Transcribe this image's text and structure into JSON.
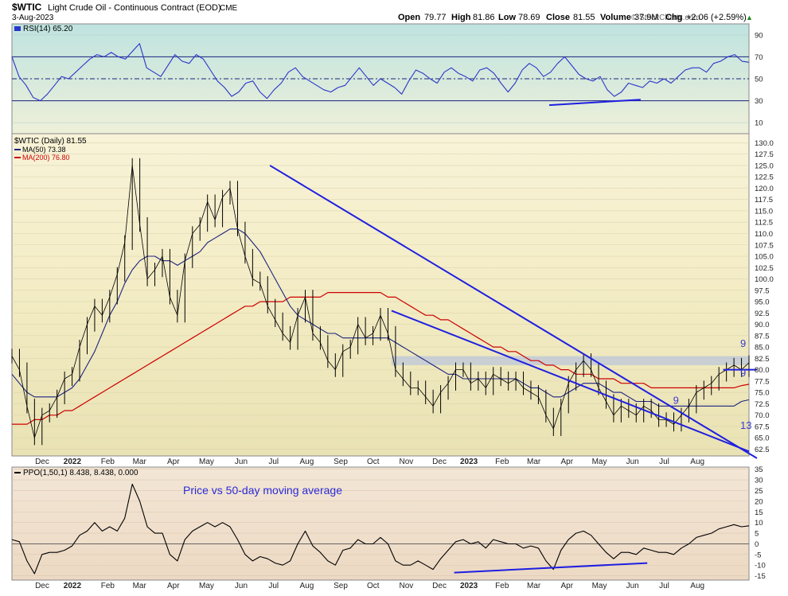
{
  "header": {
    "symbol": "$WTIC",
    "name": "Light Crude Oil - Continuous Contract (EOD)",
    "exchange": "CME",
    "date": "3-Aug-2023",
    "open_label": "Open",
    "open": "79.77",
    "high_label": "High",
    "high": "81.86",
    "low_label": "Low",
    "low": "78.69",
    "close_label": "Close",
    "close": "81.55",
    "volume_label": "Volume",
    "volume": "37.9M",
    "chg_label": "Chg",
    "chg": "+2.06 (+2.59%)",
    "up_arrow": "▲",
    "credit": "© StockCharts.com"
  },
  "colors": {
    "price": "#000000",
    "ma50": "#1a237e",
    "ma200": "#cc0000",
    "trendline": "#1f1fe0",
    "annotation": "#3a3ad0",
    "rsi_line": "#2a36c8",
    "ppo_line": "#000000",
    "resistance_band": "#a9b9e6"
  },
  "chart_data": [
    {
      "type": "line",
      "panel": "indicator",
      "title": "RSI(14) 65.20",
      "series": [
        {
          "name": "RSI(14)",
          "values": [
            70,
            52,
            44,
            33,
            30,
            36,
            44,
            52,
            50,
            56,
            62,
            68,
            72,
            70,
            74,
            70,
            68,
            75,
            82,
            60,
            56,
            52,
            62,
            72,
            66,
            64,
            72,
            68,
            58,
            48,
            42,
            34,
            38,
            46,
            48,
            38,
            32,
            40,
            46,
            56,
            60,
            52,
            48,
            44,
            40,
            38,
            42,
            44,
            52,
            60,
            52,
            44,
            50,
            46,
            42,
            36,
            48,
            58,
            55,
            50,
            46,
            56,
            60,
            55,
            52,
            48,
            58,
            60,
            55,
            46,
            38,
            46,
            58,
            64,
            60,
            52,
            56,
            64,
            70,
            62,
            54,
            50,
            48,
            52,
            40,
            34,
            38,
            46,
            44,
            42,
            48,
            46,
            50,
            46,
            52,
            58,
            60,
            60,
            56,
            64,
            66,
            70,
            72,
            66,
            65
          ]
        }
      ],
      "yticks": [
        "90",
        "70",
        "50",
        "30",
        "10"
      ],
      "ylim": [
        0,
        100
      ],
      "overbought": 70,
      "oversold": 30,
      "midline": 50
    },
    {
      "type": "line",
      "panel": "price",
      "title": "$WTIC (Daily) 81.55",
      "series": [
        {
          "name": "$WTIC (Daily)",
          "values": [
            83,
            80,
            72,
            65,
            70,
            71,
            74,
            78,
            79,
            85,
            90,
            94,
            92,
            96,
            101,
            108,
            125,
            112,
            100,
            102,
            105,
            96,
            92,
            104,
            110,
            112,
            117,
            113,
            118,
            120,
            111,
            105,
            100,
            99,
            94,
            91,
            88,
            86,
            92,
            96,
            88,
            86,
            82,
            80,
            84,
            85,
            90,
            87,
            88,
            92,
            88,
            80,
            78,
            76,
            76,
            74,
            72,
            75,
            77,
            80,
            80,
            77,
            78,
            76,
            79,
            78,
            77,
            78,
            76,
            75,
            74,
            70,
            67,
            72,
            77,
            80,
            82,
            80,
            76,
            73,
            70,
            72,
            71,
            70,
            72,
            71,
            69,
            69,
            68,
            70,
            72,
            75,
            76,
            77,
            79,
            80,
            81,
            80,
            81.55
          ]
        },
        {
          "name": "MA(50)",
          "values": [
            79,
            77,
            75,
            74,
            74,
            74,
            74,
            75,
            76,
            78,
            81,
            84,
            88,
            92,
            95,
            99,
            102,
            104,
            105,
            105,
            104,
            104,
            103,
            104,
            105,
            106,
            108,
            109,
            110,
            111,
            111,
            110,
            108,
            106,
            103,
            100,
            97,
            94,
            92,
            91,
            90,
            89,
            88,
            88,
            87,
            87,
            87,
            87,
            87,
            87,
            87,
            86,
            85,
            84,
            83,
            82,
            81,
            80,
            79,
            79,
            78,
            78,
            78,
            78,
            78,
            78,
            78,
            78,
            77,
            76,
            76,
            75,
            74,
            74,
            75,
            76,
            77,
            77,
            77,
            76,
            75,
            75,
            74,
            73,
            73,
            73,
            72,
            72,
            72,
            72,
            72,
            72,
            72,
            72,
            72,
            72,
            72,
            73,
            73.38
          ]
        },
        {
          "name": "MA(200)",
          "values": [
            68,
            68,
            68,
            69,
            69,
            70,
            70,
            71,
            71,
            72,
            73,
            74,
            75,
            76,
            77,
            78,
            79,
            80,
            81,
            82,
            83,
            84,
            85,
            86,
            87,
            88,
            89,
            90,
            91,
            92,
            93,
            94,
            94,
            95,
            95,
            95,
            95,
            96,
            96,
            96,
            96,
            96,
            97,
            97,
            97,
            97,
            97,
            97,
            97,
            97,
            96,
            96,
            95,
            94,
            93,
            92,
            92,
            91,
            91,
            90,
            89,
            88,
            87,
            86,
            85,
            85,
            84,
            84,
            83,
            82,
            82,
            81,
            81,
            80,
            80,
            79,
            79,
            79,
            78,
            78,
            78,
            77,
            77,
            77,
            77,
            76,
            76,
            76,
            76,
            76,
            76,
            76,
            76,
            76,
            76,
            76,
            76,
            76.5,
            76.8
          ]
        }
      ],
      "legend": [
        "$WTIC (Daily) 81.55",
        "MA(50) 73.38",
        "MA(200) 76.80"
      ],
      "yticks": [
        "130.0",
        "127.5",
        "125.0",
        "122.5",
        "120.0",
        "117.5",
        "115.0",
        "112.5",
        "110.0",
        "107.5",
        "105.0",
        "102.5",
        "100.0",
        "97.5",
        "95.0",
        "92.5",
        "90.0",
        "87.5",
        "85.0",
        "82.5",
        "80.0",
        "77.5",
        "75.0",
        "72.5",
        "70.0",
        "67.5",
        "65.0",
        "62.5"
      ],
      "ylim": [
        61,
        132
      ],
      "trendlines": [
        {
          "name": "upper-trendline",
          "from": [
            0.35,
            125.0
          ],
          "to": [
            1.02,
            60.5
          ]
        },
        {
          "name": "lower-trendline",
          "from": [
            0.515,
            93.0
          ],
          "to": [
            1.0,
            62.0
          ]
        },
        {
          "name": "ma-divergence-line",
          "from": [
            0.965,
            80.0
          ],
          "to": [
            1.03,
            80.0
          ]
        }
      ],
      "resistance_band": [
        81.0,
        83.0
      ],
      "resistance_band_from": 0.515,
      "annotations": [
        {
          "text": "9",
          "x": 0.897,
          "y": 72.5
        },
        {
          "text": "9",
          "x": 1.017,
          "y": 78.5
        },
        {
          "text": "9",
          "x": 1.052,
          "y": 85.0
        },
        {
          "text": "13",
          "x": 0.99,
          "y": 67.0
        }
      ]
    },
    {
      "type": "line",
      "panel": "indicator",
      "title": "PPO(1,50,1) 8.438, 8.438, 0.000",
      "annotation": "Price vs 50-day moving average",
      "series": [
        {
          "name": "PPO(1,50,1)",
          "values": [
            2,
            1,
            -8,
            -14,
            -5,
            -4,
            -4,
            -3,
            -1,
            4,
            6,
            10,
            6,
            8,
            6,
            12,
            28,
            20,
            8,
            5,
            5,
            -5,
            -8,
            2,
            6,
            8,
            10,
            8,
            10,
            8,
            2,
            -5,
            -8,
            -6,
            -7,
            -9,
            -10,
            -8,
            0,
            6,
            -1,
            -4,
            -8,
            -10,
            -3,
            -2,
            2,
            0,
            0,
            3,
            0,
            -8,
            -10,
            -10,
            -8,
            -10,
            -12,
            -7,
            -3,
            1,
            2,
            0,
            1,
            -2,
            2,
            1,
            0,
            0,
            -2,
            -1,
            -2,
            -8,
            -12,
            -3,
            2,
            5,
            6,
            4,
            0,
            -4,
            -7,
            -4,
            -4,
            -5,
            -2,
            -3,
            -4,
            -4,
            -5,
            -2,
            0,
            3,
            4,
            5,
            7,
            8,
            9,
            8,
            8.438
          ]
        }
      ],
      "yticks": [
        "35",
        "30",
        "25",
        "20",
        "15",
        "10",
        "5",
        "0",
        "-5",
        "-10",
        "-15"
      ],
      "ylim": [
        -17,
        36
      ],
      "divergence_line": {
        "from": [
          0.6,
          -13.5
        ],
        "to": [
          0.862,
          -9.0
        ]
      }
    }
  ],
  "rsi_divergence_line": {
    "from": [
      0.729,
      26
    ],
    "to": [
      0.853,
      31
    ]
  },
  "x_axis": {
    "labels": [
      "Dec",
      "2022",
      "Feb",
      "Mar",
      "Apr",
      "May",
      "Jun",
      "Jul",
      "Aug",
      "Sep",
      "Oct",
      "Nov",
      "Dec",
      "2023",
      "Feb",
      "Mar",
      "Apr",
      "May",
      "Jun",
      "Jul",
      "Aug"
    ],
    "bold": [
      "2022",
      "2023"
    ],
    "positions": [
      0.041,
      0.082,
      0.13,
      0.173,
      0.219,
      0.264,
      0.311,
      0.355,
      0.4,
      0.446,
      0.49,
      0.535,
      0.58,
      0.62,
      0.665,
      0.708,
      0.753,
      0.797,
      0.842,
      0.885,
      0.93
    ]
  }
}
